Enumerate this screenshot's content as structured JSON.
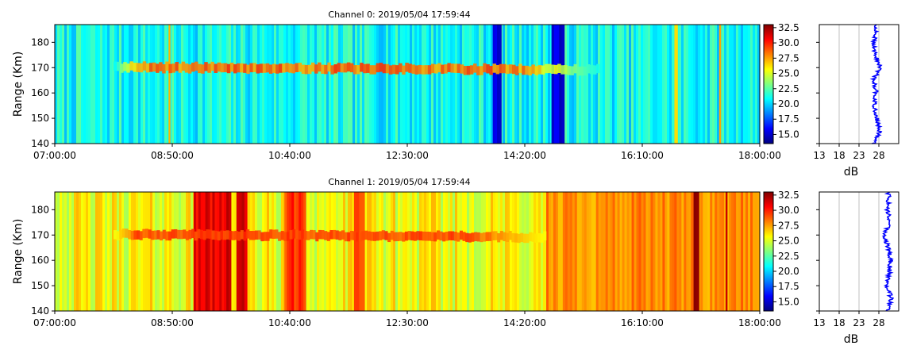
{
  "chart_data": [
    {
      "type": "heatmap",
      "title": "Channel 0: 2019/05/04 17:59:44",
      "ylabel": "Range (Km)",
      "x_ticks": [
        "07:00:00",
        "08:50:00",
        "10:40:00",
        "12:30:00",
        "14:20:00",
        "16:10:00",
        "18:00:00"
      ],
      "x_range": [
        "07:00:00",
        "18:00:00"
      ],
      "y_ticks": [
        140,
        150,
        160,
        170,
        180
      ],
      "y_range": [
        140,
        187
      ],
      "colormap": "jet",
      "colorbar": {
        "min": 13.5,
        "max": 33.0,
        "ticks": [
          "15.0",
          "17.5",
          "20.0",
          "22.5",
          "25.0",
          "27.5",
          "30.0",
          "32.5"
        ]
      },
      "background_level": 21,
      "echo": {
        "center_range": 170.2,
        "start": "07:55:00",
        "end": "15:30:00",
        "peak_level": 29
      },
      "bands": [
        {
          "start": "08:46:30",
          "end": "08:48:00",
          "level": 27
        },
        {
          "start": "13:50:00",
          "end": "13:58:00",
          "level": 15.5
        },
        {
          "start": "14:45:00",
          "end": "14:57:00",
          "level": 15
        },
        {
          "start": "16:40:00",
          "end": "16:43:00",
          "level": 27
        },
        {
          "start": "17:22:00",
          "end": "17:23:30",
          "level": 28
        }
      ],
      "profile": {
        "xlabel": "dB",
        "x_ticks": [
          13,
          18,
          23,
          28
        ],
        "x_range": [
          13,
          33
        ],
        "ranges": [
          140,
          145,
          150,
          155,
          160,
          165,
          170,
          175,
          180,
          185,
          187
        ],
        "values": [
          26.8,
          28.2,
          27.5,
          26.9,
          27.3,
          26.6,
          28.3,
          27.1,
          26.8,
          27.2,
          27.0
        ]
      }
    },
    {
      "type": "heatmap",
      "title": "Channel 1: 2019/05/04 17:59:44",
      "ylabel": "Range (Km)",
      "x_ticks": [
        "07:00:00",
        "08:50:00",
        "10:40:00",
        "12:30:00",
        "14:20:00",
        "16:10:00",
        "18:00:00"
      ],
      "x_range": [
        "07:00:00",
        "18:00:00"
      ],
      "y_ticks": [
        140,
        150,
        160,
        170,
        180
      ],
      "y_range": [
        140,
        187
      ],
      "colormap": "jet",
      "colorbar": {
        "min": 13.5,
        "max": 33.0,
        "ticks": [
          "15.0",
          "17.5",
          "20.0",
          "22.5",
          "25.0",
          "27.5",
          "30.0",
          "32.5"
        ]
      },
      "background_level": 25.5,
      "echo": {
        "center_range": 170.3,
        "start": "07:55:00",
        "end": "14:40:00",
        "peak_level": 29.5
      },
      "bands": [
        {
          "start": "09:10:00",
          "end": "09:45:00",
          "level": 31
        },
        {
          "start": "09:50:00",
          "end": "10:00:00",
          "level": 31.5
        },
        {
          "start": "10:35:00",
          "end": "10:55:00",
          "level": 29.5
        },
        {
          "start": "11:40:00",
          "end": "11:50:00",
          "level": 28.5
        },
        {
          "start": "14:40:00",
          "end": "18:00:00",
          "level": 27.8
        },
        {
          "start": "16:58:00",
          "end": "17:03:00",
          "level": 32
        },
        {
          "start": "17:28:00",
          "end": "17:29:30",
          "level": 32
        }
      ],
      "profile": {
        "xlabel": "dB",
        "x_ticks": [
          13,
          18,
          23,
          28
        ],
        "x_range": [
          13,
          33
        ],
        "ranges": [
          140,
          145,
          150,
          155,
          160,
          165,
          170,
          175,
          180,
          185,
          187
        ],
        "values": [
          30.2,
          31.1,
          30.0,
          30.6,
          31.0,
          30.4,
          29.3,
          30.7,
          30.2,
          30.5,
          30.3
        ]
      }
    }
  ]
}
